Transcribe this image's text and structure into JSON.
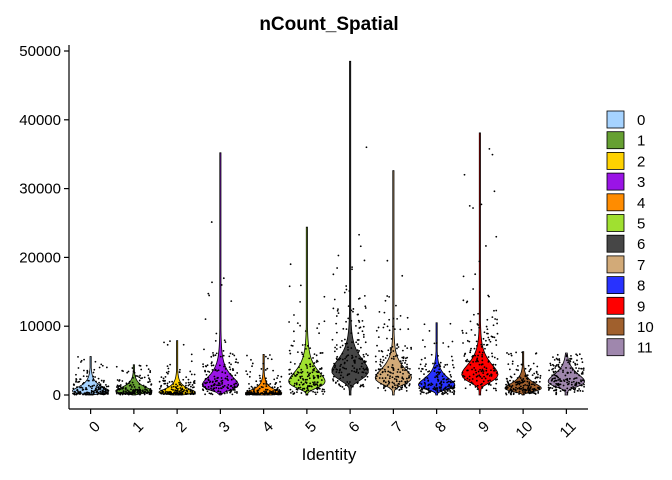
{
  "chart_data": {
    "type": "violin",
    "title": "nCount_Spatial",
    "xlabel": "Identity",
    "ylabel": "",
    "ylim": [
      0,
      50000
    ],
    "yticks": [
      0,
      10000,
      20000,
      30000,
      40000,
      50000
    ],
    "ytick_labels": [
      "0",
      "10000",
      "20000",
      "30000",
      "40000",
      "50000"
    ],
    "grid": false,
    "legend_position": "right",
    "categories": [
      "0",
      "1",
      "2",
      "3",
      "4",
      "5",
      "6",
      "7",
      "8",
      "9",
      "10",
      "11"
    ],
    "series": [
      {
        "name": "0",
        "color": "#A6D3FF",
        "max": 5600,
        "median": 800,
        "mode": 600,
        "spread": 3.0
      },
      {
        "name": "1",
        "color": "#66A032",
        "max": 4400,
        "median": 700,
        "mode": 600,
        "spread": 3.0
      },
      {
        "name": "2",
        "color": "#FFD200",
        "max": 7900,
        "median": 600,
        "mode": 400,
        "spread": 3.5
      },
      {
        "name": "3",
        "color": "#9A14E6",
        "max": 35200,
        "median": 2000,
        "mode": 1500,
        "spread": 5.0
      },
      {
        "name": "4",
        "color": "#FF8C00",
        "max": 5900,
        "median": 400,
        "mode": 300,
        "spread": 3.0
      },
      {
        "name": "5",
        "color": "#A0E030",
        "max": 24400,
        "median": 2300,
        "mode": 2000,
        "spread": 4.5
      },
      {
        "name": "6",
        "color": "#464646",
        "max": 48500,
        "median": 6000,
        "mode": 3500,
        "spread": 8.0
      },
      {
        "name": "7",
        "color": "#D2AA78",
        "max": 32600,
        "median": 4000,
        "mode": 2500,
        "spread": 7.0
      },
      {
        "name": "8",
        "color": "#2832FF",
        "max": 10500,
        "median": 1800,
        "mode": 1500,
        "spread": 4.0
      },
      {
        "name": "9",
        "color": "#FF0000",
        "max": 38100,
        "median": 5000,
        "mode": 3000,
        "spread": 7.5
      },
      {
        "name": "10",
        "color": "#A0602D",
        "max": 6300,
        "median": 1300,
        "mode": 1000,
        "spread": 3.5
      },
      {
        "name": "11",
        "color": "#9F87AD",
        "max": 6100,
        "median": 2300,
        "mode": 2000,
        "spread": 3.0
      }
    ]
  }
}
